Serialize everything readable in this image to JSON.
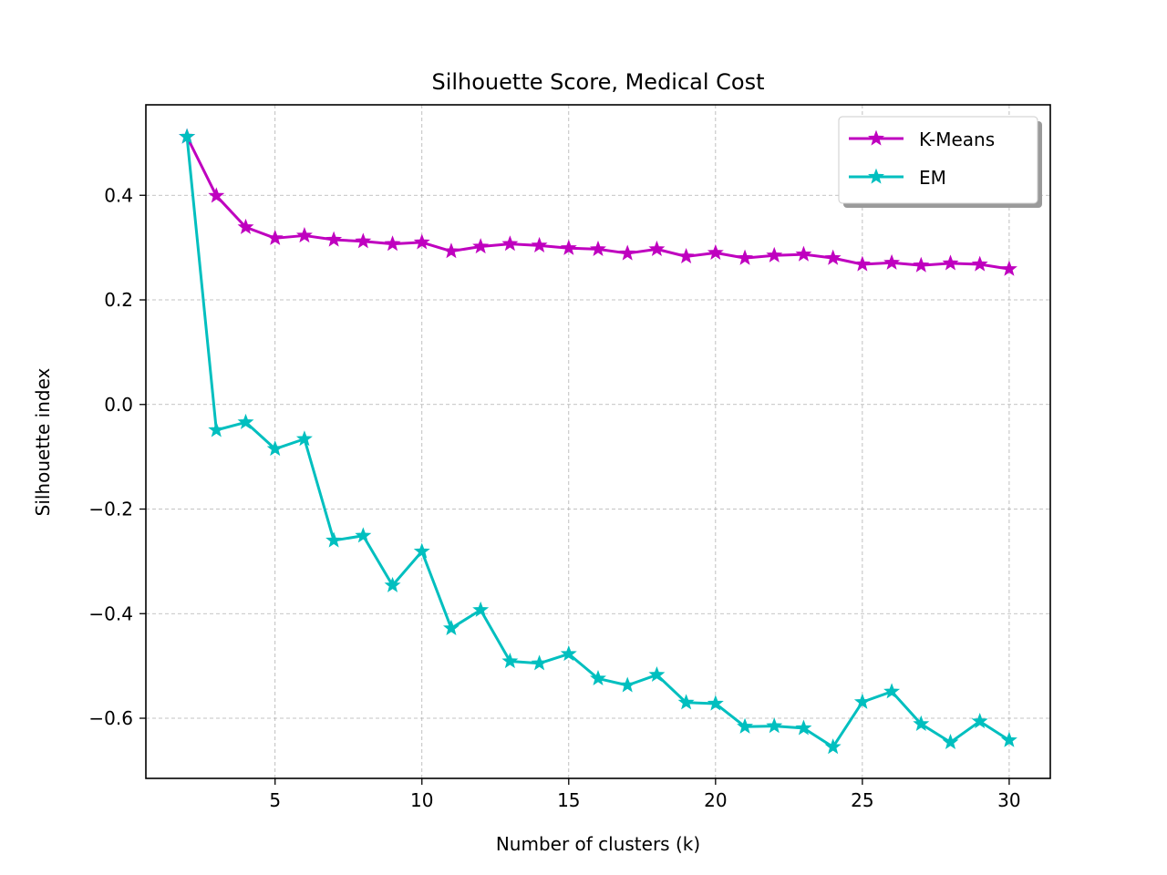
{
  "chart_data": {
    "type": "line",
    "title": "Silhouette Score, Medical Cost",
    "xlabel": "Number of clusters (k)",
    "ylabel": "Silhouette index",
    "xlim": [
      0.6,
      31.4
    ],
    "ylim": [
      -0.715,
      0.573
    ],
    "xticks": [
      5,
      10,
      15,
      20,
      25,
      30
    ],
    "xtick_labels": [
      "5",
      "10",
      "15",
      "20",
      "25",
      "30"
    ],
    "yticks": [
      -0.6,
      -0.4,
      -0.2,
      0.0,
      0.2,
      0.4
    ],
    "ytick_labels": [
      "−0.6",
      "−0.4",
      "−0.2",
      "0.0",
      "0.2",
      "0.4"
    ],
    "grid": true,
    "legend_position": "top-right",
    "marker": "star",
    "x": [
      2,
      3,
      4,
      5,
      6,
      7,
      8,
      9,
      10,
      11,
      12,
      13,
      14,
      15,
      16,
      17,
      18,
      19,
      20,
      21,
      22,
      23,
      24,
      25,
      26,
      27,
      28,
      29,
      30
    ],
    "series": [
      {
        "name": "K-Means",
        "color": "#bf00bf",
        "values": [
          0.512,
          0.399,
          0.339,
          0.318,
          0.323,
          0.315,
          0.312,
          0.307,
          0.31,
          0.293,
          0.302,
          0.307,
          0.304,
          0.299,
          0.297,
          0.289,
          0.297,
          0.283,
          0.29,
          0.28,
          0.285,
          0.287,
          0.28,
          0.268,
          0.271,
          0.266,
          0.27,
          0.268,
          0.259
        ]
      },
      {
        "name": "EM",
        "color": "#00bfbf",
        "values": [
          0.512,
          -0.049,
          -0.034,
          -0.085,
          -0.066,
          -0.26,
          -0.251,
          -0.346,
          -0.281,
          -0.428,
          -0.393,
          -0.491,
          -0.495,
          -0.477,
          -0.524,
          -0.537,
          -0.517,
          -0.57,
          -0.572,
          -0.616,
          -0.615,
          -0.619,
          -0.655,
          -0.569,
          -0.549,
          -0.611,
          -0.646,
          -0.606,
          -0.642
        ]
      }
    ]
  }
}
